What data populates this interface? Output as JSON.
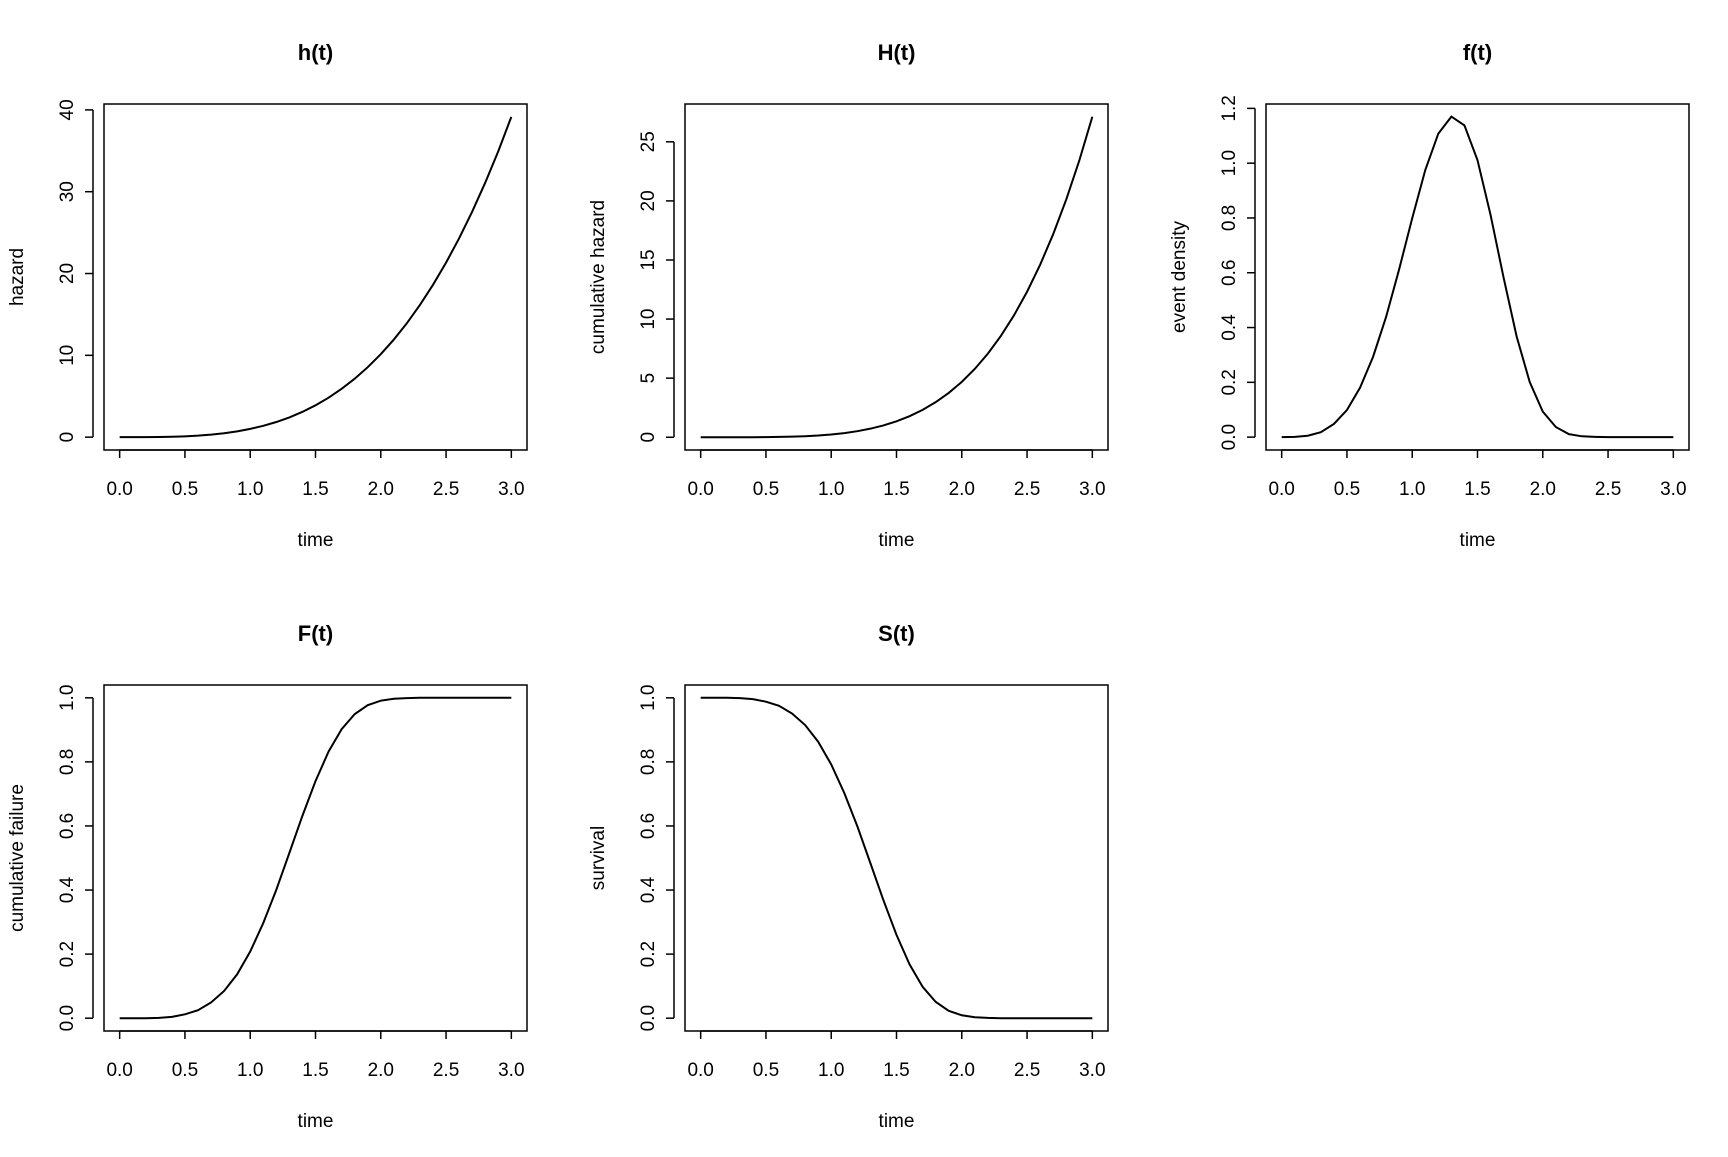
{
  "chart_data": [
    {
      "type": "line",
      "title": "h(t)",
      "x_label": "time",
      "y_label": "hazard",
      "color": "#000000",
      "x": [
        0,
        0.1,
        0.2,
        0.3,
        0.4,
        0.5,
        0.6,
        0.7,
        0.8,
        0.9,
        1,
        1.1,
        1.2,
        1.3,
        1.4,
        1.5,
        1.6,
        1.7,
        1.8,
        1.9,
        2,
        2.1,
        2.2,
        2.3,
        2.4,
        2.5,
        2.6,
        2.7,
        2.8,
        2.9,
        3
      ],
      "values": [
        0,
        0.001,
        0.005,
        0.018,
        0.048,
        0.1,
        0.184,
        0.308,
        0.48,
        0.71,
        1.009,
        1.386,
        1.851,
        2.416,
        3.093,
        3.892,
        4.825,
        5.904,
        7.142,
        8.551,
        10.143,
        11.93,
        13.93,
        16.16,
        18.62,
        21.33,
        24.3,
        27.56,
        31.1,
        34.95,
        39.15
      ],
      "xlim": [
        -0.12,
        3.12
      ],
      "ylim": [
        -1.57,
        40.72
      ],
      "xticks": [
        {
          "value": 0,
          "label": "0.0"
        },
        0.5,
        {
          "value": 1,
          "label": "1.0"
        },
        1.5,
        {
          "value": 2,
          "label": "2.0"
        },
        2.5,
        {
          "value": 3,
          "label": "3.0"
        }
      ],
      "yticks": [
        0,
        10,
        20,
        30,
        40
      ]
    },
    {
      "type": "line",
      "title": "H(t)",
      "x_label": "time",
      "y_label": "cumulative hazard",
      "color": "#000000",
      "x": [
        0,
        0.1,
        0.2,
        0.3,
        0.4,
        0.5,
        0.6,
        0.7,
        0.8,
        0.9,
        1,
        1.1,
        1.2,
        1.3,
        1.4,
        1.5,
        1.6,
        1.7,
        1.8,
        1.9,
        2,
        2.1,
        2.2,
        2.3,
        2.4,
        2.5,
        2.6,
        2.7,
        2.8,
        2.9,
        3
      ],
      "values": [
        0,
        0,
        0,
        0.001,
        0.004,
        0.012,
        0.026,
        0.05,
        0.089,
        0.148,
        0.233,
        0.352,
        0.513,
        0.726,
        1,
        1.348,
        1.783,
        2.318,
        2.969,
        3.752,
        4.685,
        5.787,
        7.079,
        8.582,
        10.318,
        12.313,
        14.591,
        17.183,
        20.11,
        23.41,
        27.12
      ],
      "xlim": [
        -0.12,
        3.12
      ],
      "ylim": [
        -1.08,
        28.2
      ],
      "xticks": [
        {
          "value": 0,
          "label": "0.0"
        },
        0.5,
        {
          "value": 1,
          "label": "1.0"
        },
        1.5,
        {
          "value": 2,
          "label": "2.0"
        },
        2.5,
        {
          "value": 3,
          "label": "3.0"
        }
      ],
      "yticks": [
        0,
        5,
        10,
        15,
        20,
        25
      ]
    },
    {
      "type": "line",
      "title": "f(t)",
      "x_label": "time",
      "y_label": "event density",
      "color": "#000000",
      "x": [
        0,
        0.1,
        0.2,
        0.3,
        0.4,
        0.5,
        0.6,
        0.7,
        0.8,
        0.9,
        1,
        1.1,
        1.2,
        1.3,
        1.4,
        1.5,
        1.6,
        1.7,
        1.8,
        1.9,
        2,
        2.1,
        2.2,
        2.3,
        2.4,
        2.5,
        2.6,
        2.7,
        2.8,
        2.9,
        3
      ],
      "values": [
        0,
        0.001,
        0.005,
        0.018,
        0.048,
        0.099,
        0.18,
        0.293,
        0.439,
        0.613,
        0.799,
        0.975,
        1.108,
        1.17,
        1.138,
        1.011,
        0.811,
        0.582,
        0.367,
        0.201,
        0.093,
        0.037,
        0.011,
        0.003,
        0.001,
        0,
        0,
        0,
        0,
        0,
        0
      ],
      "xlim": [
        -0.12,
        3.12
      ],
      "ylim": [
        -0.047,
        1.216
      ],
      "xticks": [
        {
          "value": 0,
          "label": "0.0"
        },
        0.5,
        {
          "value": 1,
          "label": "1.0"
        },
        1.5,
        {
          "value": 2,
          "label": "2.0"
        },
        2.5,
        {
          "value": 3,
          "label": "3.0"
        }
      ],
      "yticks": [
        {
          "value": 0,
          "label": "0.0"
        },
        0.2,
        0.4,
        0.6,
        0.8,
        {
          "value": 1,
          "label": "1.0"
        },
        1.2
      ]
    },
    {
      "type": "line",
      "title": "F(t)",
      "x_label": "time",
      "y_label": "cumulative failure",
      "color": "#000000",
      "x": [
        0,
        0.1,
        0.2,
        0.3,
        0.4,
        0.5,
        0.6,
        0.7,
        0.8,
        0.9,
        1,
        1.1,
        1.2,
        1.3,
        1.4,
        1.5,
        1.6,
        1.7,
        1.8,
        1.9,
        2,
        2.1,
        2.2,
        2.3,
        2.4,
        2.5,
        2.6,
        2.7,
        2.8,
        2.9,
        3
      ],
      "values": [
        0,
        0,
        0,
        0.001,
        0.004,
        0.012,
        0.025,
        0.049,
        0.085,
        0.137,
        0.208,
        0.297,
        0.401,
        0.516,
        0.632,
        0.74,
        0.832,
        0.902,
        0.949,
        0.977,
        0.991,
        0.997,
        0.999,
        1,
        1,
        1,
        1,
        1,
        1,
        1,
        1
      ],
      "xlim": [
        -0.12,
        3.12
      ],
      "ylim": [
        -0.04,
        1.04
      ],
      "xticks": [
        {
          "value": 0,
          "label": "0.0"
        },
        0.5,
        {
          "value": 1,
          "label": "1.0"
        },
        1.5,
        {
          "value": 2,
          "label": "2.0"
        },
        2.5,
        {
          "value": 3,
          "label": "3.0"
        }
      ],
      "yticks": [
        {
          "value": 0,
          "label": "0.0"
        },
        0.2,
        0.4,
        0.6,
        0.8,
        {
          "value": 1,
          "label": "1.0"
        }
      ]
    },
    {
      "type": "line",
      "title": "S(t)",
      "x_label": "time",
      "y_label": "survival",
      "color": "#000000",
      "x": [
        0,
        0.1,
        0.2,
        0.3,
        0.4,
        0.5,
        0.6,
        0.7,
        0.8,
        0.9,
        1,
        1.1,
        1.2,
        1.3,
        1.4,
        1.5,
        1.6,
        1.7,
        1.8,
        1.9,
        2,
        2.1,
        2.2,
        2.3,
        2.4,
        2.5,
        2.6,
        2.7,
        2.8,
        2.9,
        3
      ],
      "values": [
        1,
        1,
        1,
        0.999,
        0.996,
        0.988,
        0.975,
        0.951,
        0.915,
        0.863,
        0.792,
        0.703,
        0.599,
        0.484,
        0.368,
        0.26,
        0.168,
        0.098,
        0.051,
        0.023,
        0.009,
        0.003,
        0.001,
        0,
        0,
        0,
        0,
        0,
        0,
        0,
        0
      ],
      "xlim": [
        -0.12,
        3.12
      ],
      "ylim": [
        -0.04,
        1.04
      ],
      "xticks": [
        {
          "value": 0,
          "label": "0.0"
        },
        0.5,
        {
          "value": 1,
          "label": "1.0"
        },
        1.5,
        {
          "value": 2,
          "label": "2.0"
        },
        2.5,
        {
          "value": 3,
          "label": "3.0"
        }
      ],
      "yticks": [
        {
          "value": 0,
          "label": "0.0"
        },
        0.2,
        0.4,
        0.6,
        0.8,
        {
          "value": 1,
          "label": "1.0"
        }
      ]
    }
  ]
}
